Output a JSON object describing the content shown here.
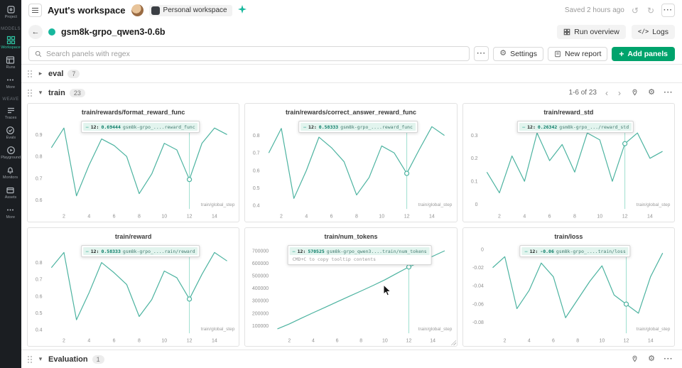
{
  "colors": {
    "accent_button": "#00a36c",
    "run_dot": "#17b79d",
    "line": "#4cb3a0",
    "crosshair": "#9edfcf",
    "tooltip_highlight": "#e2f4ee",
    "sidebar_active": "#2fc6a4"
  },
  "sidebar": {
    "groups": {
      "models": "MODELS",
      "weave": "WEAVE"
    },
    "items": {
      "project": "Project",
      "workspace": "Workspace",
      "runs": "Runs",
      "more_models": "More",
      "traces": "Traces",
      "evals": "Evals",
      "playground": "Playground",
      "monitors": "Monitors",
      "assets": "Assets",
      "more_weave": "More"
    }
  },
  "topbar": {
    "title": "Ayut's workspace",
    "workspace_badge": "Personal workspace",
    "saved": "Saved 2 hours ago"
  },
  "runbar": {
    "run_name": "gsm8k-grpo_qwen3-0.6b",
    "run_overview": "Run overview",
    "logs": "Logs"
  },
  "toolbar": {
    "search_placeholder": "Search panels with regex",
    "settings": "Settings",
    "new_report": "New report",
    "add_panels": "Add panels"
  },
  "sections": {
    "eval": {
      "label": "eval",
      "count": "7"
    },
    "train": {
      "label": "train",
      "count": "23",
      "pagination": "1-6 of 23"
    },
    "evaluation": {
      "label": "Evaluation",
      "count": "1"
    }
  },
  "chart_data": [
    {
      "type": "line",
      "title": "train/rewards/format_reward_func",
      "xlabel": "train/global_step",
      "x": [
        1,
        2,
        3,
        4,
        5,
        6,
        7,
        8,
        9,
        10,
        11,
        12,
        13,
        14,
        15
      ],
      "values": [
        0.84,
        0.93,
        0.62,
        0.76,
        0.88,
        0.85,
        0.8,
        0.63,
        0.72,
        0.86,
        0.83,
        0.69444,
        0.86,
        0.93,
        0.9
      ],
      "xlim": [
        0.5,
        15.5
      ],
      "ylim": [
        0.56,
        0.96
      ],
      "xticks": [
        2,
        4,
        6,
        8,
        10,
        12,
        14
      ],
      "yticks": [
        0.6,
        0.7,
        0.8,
        0.9
      ],
      "highlight_x": 12,
      "hovered": false,
      "tooltip": {
        "step": "12:",
        "value": "0.69444",
        "run": "gsm8k-grpo_....reward_func",
        "hint": ""
      }
    },
    {
      "type": "line",
      "title": "train/rewards/correct_answer_reward_func",
      "xlabel": "train/global_step",
      "x": [
        1,
        2,
        3,
        4,
        5,
        6,
        7,
        8,
        9,
        10,
        11,
        12,
        13,
        14,
        15
      ],
      "values": [
        0.7,
        0.84,
        0.44,
        0.6,
        0.79,
        0.73,
        0.65,
        0.46,
        0.56,
        0.74,
        0.7,
        0.58333,
        0.72,
        0.85,
        0.8
      ],
      "xlim": [
        0.5,
        15.5
      ],
      "ylim": [
        0.38,
        0.88
      ],
      "xticks": [
        2,
        4,
        6,
        8,
        10,
        12,
        14
      ],
      "yticks": [
        0.4,
        0.5,
        0.6,
        0.7,
        0.8
      ],
      "highlight_x": 12,
      "hovered": false,
      "tooltip": {
        "step": "12:",
        "value": "0.58333",
        "run": "gsm8k-grpo_....reward_func",
        "hint": ""
      }
    },
    {
      "type": "line",
      "title": "train/reward_std",
      "xlabel": "train/global_step",
      "x": [
        1,
        2,
        3,
        4,
        5,
        6,
        7,
        8,
        9,
        10,
        11,
        12,
        13,
        14,
        15
      ],
      "values": [
        0.14,
        0.05,
        0.21,
        0.1,
        0.31,
        0.19,
        0.26,
        0.14,
        0.31,
        0.28,
        0.1,
        0.26342,
        0.31,
        0.2,
        0.23
      ],
      "xlim": [
        0.5,
        15.5
      ],
      "ylim": [
        -0.02,
        0.36
      ],
      "xticks": [
        2,
        4,
        6,
        8,
        10,
        12,
        14
      ],
      "yticks": [
        0,
        0.1,
        0.2,
        0.3
      ],
      "highlight_x": 12,
      "hovered": false,
      "tooltip": {
        "step": "12:",
        "value": "0.26342",
        "run": "gsm8k-grpo_.../reward_std",
        "hint": ""
      }
    },
    {
      "type": "line",
      "title": "train/reward",
      "xlabel": "train/global_step",
      "x": [
        1,
        2,
        3,
        4,
        5,
        6,
        7,
        8,
        9,
        10,
        11,
        12,
        13,
        14,
        15
      ],
      "values": [
        0.77,
        0.86,
        0.46,
        0.62,
        0.8,
        0.74,
        0.67,
        0.48,
        0.58,
        0.75,
        0.71,
        0.58333,
        0.73,
        0.86,
        0.81
      ],
      "xlim": [
        0.5,
        15.5
      ],
      "ylim": [
        0.38,
        0.9
      ],
      "xticks": [
        2,
        4,
        6,
        8,
        10,
        12,
        14
      ],
      "yticks": [
        0.4,
        0.5,
        0.6,
        0.7,
        0.8
      ],
      "highlight_x": 12,
      "hovered": false,
      "tooltip": {
        "step": "12:",
        "value": "0.58333",
        "run": "gsm8k-grpo_....rain/reward",
        "hint": ""
      }
    },
    {
      "type": "line",
      "title": "train/num_tokens",
      "xlabel": "train/global_step",
      "x": [
        1,
        2,
        3,
        4,
        5,
        6,
        7,
        8,
        9,
        10,
        11,
        12,
        13,
        14,
        15
      ],
      "values": [
        75000,
        115000,
        160000,
        205000,
        248000,
        292000,
        335000,
        378000,
        422000,
        468000,
        520000,
        570525,
        612000,
        656000,
        700000
      ],
      "xlim": [
        0.5,
        15.5
      ],
      "ylim": [
        40000,
        740000
      ],
      "xticks": [
        2,
        4,
        6,
        8,
        10,
        12,
        14
      ],
      "yticks": [
        100000,
        200000,
        300000,
        400000,
        500000,
        600000,
        700000
      ],
      "highlight_x": 12,
      "hovered": true,
      "tooltip": {
        "step": "12:",
        "value": "570525",
        "run": "gsm8k-grpo_qwen3....train/num_tokens",
        "hint": "CMD+C to copy tooltip contents"
      }
    },
    {
      "type": "line",
      "title": "train/loss",
      "xlabel": "train/global_step",
      "x": [
        1,
        2,
        3,
        4,
        5,
        6,
        7,
        8,
        9,
        10,
        11,
        12,
        13,
        14,
        15
      ],
      "values": [
        -0.02,
        -0.008,
        -0.065,
        -0.045,
        -0.015,
        -0.03,
        -0.075,
        -0.055,
        -0.035,
        -0.018,
        -0.05,
        -0.06,
        -0.07,
        -0.03,
        -0.004
      ],
      "xlim": [
        0.5,
        15.5
      ],
      "ylim": [
        -0.092,
        0.004
      ],
      "xticks": [
        2,
        4,
        6,
        8,
        10,
        12,
        14
      ],
      "yticks": [
        0,
        -0.02,
        -0.04,
        -0.06,
        -0.08
      ],
      "highlight_x": 12,
      "hovered": false,
      "tooltip": {
        "step": "12:",
        "value": "-0.06",
        "run": "gsm8k-grpo_....train/loss",
        "hint": ""
      }
    }
  ]
}
